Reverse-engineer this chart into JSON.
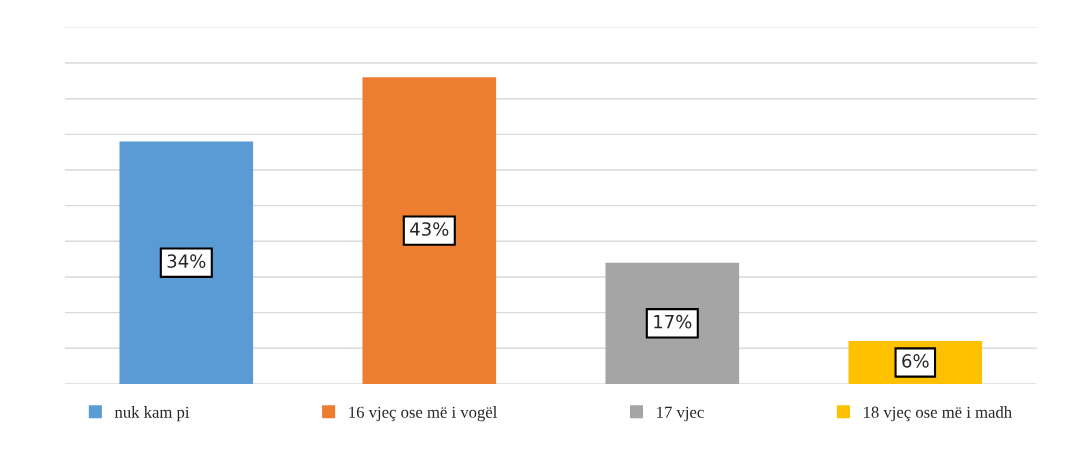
{
  "chart_data": {
    "type": "bar",
    "categories": [
      null,
      null,
      null,
      null
    ],
    "stacked": true,
    "series": [
      {
        "name": "nuk kam pi",
        "color": "#5b9bd5",
        "values": [
          34,
          null,
          null,
          null
        ],
        "value_labels": [
          "34%",
          null,
          null,
          null
        ]
      },
      {
        "name": "16 vjeç ose më i vogël",
        "color": "#ed7d31",
        "values": [
          null,
          43,
          null,
          null
        ],
        "value_labels": [
          null,
          "43%",
          null,
          null
        ]
      },
      {
        "name": "17 vjec",
        "color": "#a5a5a5",
        "values": [
          null,
          null,
          17,
          null
        ],
        "value_labels": [
          null,
          null,
          "17%",
          null
        ]
      },
      {
        "name": "18 vjeç ose më i madh",
        "color": "#ffc000",
        "values": [
          null,
          null,
          null,
          6
        ],
        "value_labels": [
          null,
          null,
          null,
          "6%"
        ]
      }
    ],
    "ylim": [
      0,
      50
    ],
    "yticks": [
      {
        "value": 0,
        "label": null
      },
      {
        "value": 5,
        "label": null
      },
      {
        "value": 10,
        "label": null
      },
      {
        "value": 15,
        "label": null
      },
      {
        "value": 20,
        "label": null
      },
      {
        "value": 25,
        "label": null
      },
      {
        "value": 30,
        "label": null
      },
      {
        "value": 35,
        "label": null
      },
      {
        "value": 40,
        "label": null
      },
      {
        "value": 45,
        "label": null
      },
      {
        "value": 50,
        "label": null
      }
    ],
    "grid": "y",
    "legend": "bottom",
    "tick_labels": false
  }
}
